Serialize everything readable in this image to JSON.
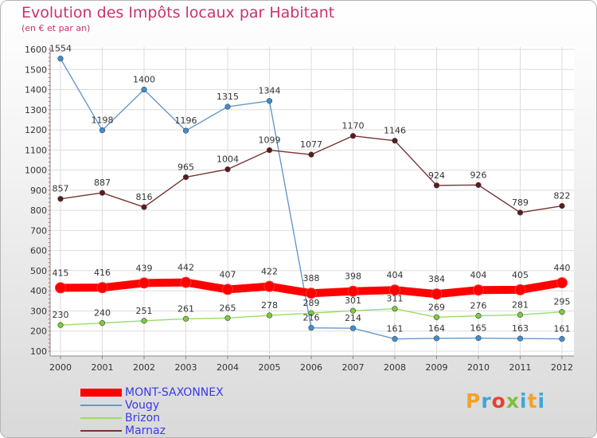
{
  "title": "Evolution des Impôts locaux par Habitant",
  "subtitle": "(en € et par an)",
  "brand": {
    "text": "Proxiti",
    "colors": [
      "#f2a32a",
      "#3fa7d6",
      "#e5442e",
      "#7fbf3f",
      "#3fa7d6",
      "#f2a32a",
      "#3fa7d6"
    ]
  },
  "chart_data": {
    "type": "line",
    "x": [
      "2000",
      "2001",
      "2002",
      "2003",
      "2004",
      "2005",
      "2006",
      "2007",
      "2008",
      "2009",
      "2010",
      "2011",
      "2012"
    ],
    "yticks": [
      "100",
      "200",
      "300",
      "400",
      "500",
      "600",
      "700",
      "800",
      "900",
      "1000",
      "1100",
      "1200",
      "1300",
      "1400",
      "1500",
      "1600"
    ],
    "ylim": [
      100,
      1600
    ],
    "grid": true,
    "legend_position": "bottom-left",
    "series": [
      {
        "name": "MONT-SAXONNEX",
        "color": "#ff0000",
        "marker": "#ff0000",
        "bold": true,
        "values": [
          415,
          416,
          439,
          442,
          407,
          422,
          388,
          398,
          404,
          384,
          404,
          405,
          440
        ]
      },
      {
        "name": "Vougy",
        "color": "#6699cc",
        "marker": "#3f8fd0",
        "values": [
          1554,
          1198,
          1400,
          1196,
          1315,
          1344,
          216,
          214,
          161,
          164,
          165,
          163,
          161
        ]
      },
      {
        "name": "Brizon",
        "color": "#99dd66",
        "marker": "#7ccc3c",
        "values": [
          230,
          240,
          251,
          261,
          265,
          278,
          289,
          301,
          311,
          269,
          276,
          281,
          295
        ]
      },
      {
        "name": "Marnaz",
        "color": "#773333",
        "marker": "#5c1a1a",
        "values": [
          857,
          887,
          816,
          965,
          1004,
          1099,
          1077,
          1170,
          1146,
          924,
          926,
          789,
          822
        ]
      }
    ]
  }
}
